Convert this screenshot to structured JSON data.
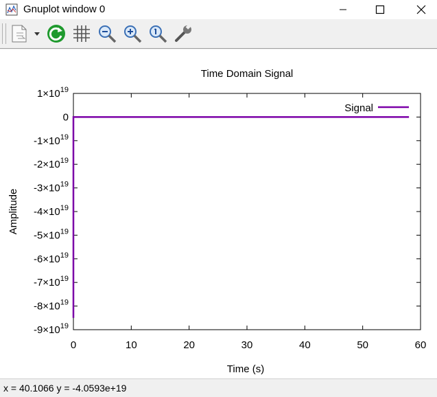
{
  "window": {
    "title": "Gnuplot window 0"
  },
  "toolbar": {
    "buttons": [
      "copy-options",
      "replot",
      "grid",
      "zoom-previous",
      "zoom-next",
      "unzoom",
      "settings"
    ]
  },
  "status": {
    "text": "x = 40.1066 y = -4.0593e+19"
  },
  "colors": {
    "series": "#7b00a8",
    "frame": "#000000"
  },
  "chart_data": {
    "type": "line",
    "title": "Time Domain Signal",
    "xlabel": "Time (s)",
    "ylabel": "Amplitude",
    "xlim": [
      0,
      60
    ],
    "ylim": [
      -9e+19,
      1e+19
    ],
    "xticks": [
      {
        "v": 0,
        "label": "0"
      },
      {
        "v": 10,
        "label": "10"
      },
      {
        "v": 20,
        "label": "20"
      },
      {
        "v": 30,
        "label": "30"
      },
      {
        "v": 40,
        "label": "40"
      },
      {
        "v": 50,
        "label": "50"
      },
      {
        "v": 60,
        "label": "60"
      }
    ],
    "yticks": [
      {
        "v": 1e+19,
        "mant": "1",
        "exp": "19",
        "neg": false
      },
      {
        "v": 0,
        "mant": "0",
        "exp": "",
        "neg": false
      },
      {
        "v": -1e+19,
        "mant": "-1",
        "exp": "19",
        "neg": true
      },
      {
        "v": -2e+19,
        "mant": "-2",
        "exp": "19",
        "neg": true
      },
      {
        "v": -3e+19,
        "mant": "-3",
        "exp": "19",
        "neg": true
      },
      {
        "v": -4e+19,
        "mant": "-4",
        "exp": "19",
        "neg": true
      },
      {
        "v": -5e+19,
        "mant": "-5",
        "exp": "19",
        "neg": true
      },
      {
        "v": -6e+19,
        "mant": "-6",
        "exp": "19",
        "neg": true
      },
      {
        "v": -7e+19,
        "mant": "-7",
        "exp": "19",
        "neg": true
      },
      {
        "v": -8e+19,
        "mant": "-8",
        "exp": "19",
        "neg": true
      },
      {
        "v": -9e+19,
        "mant": "-9",
        "exp": "19",
        "neg": true
      }
    ],
    "legend": {
      "label": "Signal",
      "position": "top-right"
    },
    "series": [
      {
        "name": "Signal",
        "x": [
          0,
          0,
          0.05,
          58
        ],
        "y": [
          -8.5e+19,
          0,
          0,
          0
        ]
      }
    ]
  }
}
